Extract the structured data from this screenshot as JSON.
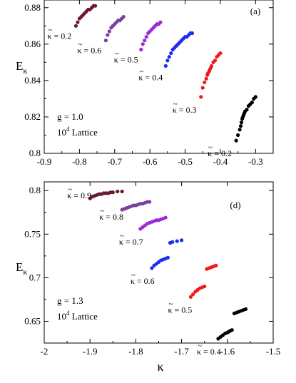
{
  "figure": {
    "xlabel_top_suffix": "",
    "kappa_symbol": "κ",
    "E_symbol": "E",
    "E_subscript": "κ",
    "tilde": "~"
  },
  "chart_data": [
    {
      "type": "scatter",
      "panel_label": "(a)",
      "xlabel": "",
      "ylabel": "Eκ",
      "xlim": [
        -0.9,
        -0.25
      ],
      "ylim": [
        0.8,
        0.885
      ],
      "xticks": [
        -0.9,
        -0.8,
        -0.7,
        -0.6,
        -0.5,
        -0.4,
        -0.3
      ],
      "xtick_labels": [
        "-0.9",
        "-0.8",
        "-0.7",
        "-0.6",
        "-0.5",
        "-0.4",
        "-0.3"
      ],
      "yticks": [
        0.8,
        0.82,
        0.84,
        0.86,
        0.88
      ],
      "ytick_labels": [
        "0.8",
        "0.82",
        "0.84",
        "0.86",
        "0.88"
      ],
      "annotation_lines": [
        "g = 1.0",
        "10",
        "4",
        " Lattice"
      ],
      "series": [
        {
          "label": "κ = 0.2",
          "color": "#6a1b2e",
          "label_pos": "left",
          "x": [
            -0.81,
            -0.805,
            -0.8,
            -0.795,
            -0.79,
            -0.785,
            -0.78,
            -0.775,
            -0.77,
            -0.765,
            -0.76,
            -0.755
          ],
          "y": [
            0.87,
            0.872,
            0.874,
            0.875,
            0.876,
            0.877,
            0.878,
            0.879,
            0.879,
            0.88,
            0.881,
            0.881
          ]
        },
        {
          "label": "κ = 0.6",
          "color": "#7b3fa0",
          "label_pos": "left",
          "x": [
            -0.725,
            -0.72,
            -0.715,
            -0.71,
            -0.705,
            -0.7,
            -0.695,
            -0.69,
            -0.685,
            -0.68,
            -0.675
          ],
          "y": [
            0.862,
            0.865,
            0.867,
            0.869,
            0.87,
            0.871,
            0.872,
            0.873,
            0.873,
            0.874,
            0.875
          ]
        },
        {
          "label": "κ = 0.5",
          "color": "#9a2bd6",
          "label_pos": "left",
          "x": [
            -0.625,
            -0.62,
            -0.615,
            -0.61,
            -0.605,
            -0.6,
            -0.595,
            -0.59,
            -0.585,
            -0.58,
            -0.575,
            -0.57
          ],
          "y": [
            0.857,
            0.86,
            0.862,
            0.864,
            0.866,
            0.867,
            0.868,
            0.869,
            0.87,
            0.871,
            0.871,
            0.872
          ]
        },
        {
          "label": "κ = 0.4",
          "color": "#1c2cf0",
          "label_pos": "left",
          "x": [
            -0.555,
            -0.55,
            -0.545,
            -0.54,
            -0.535,
            -0.53,
            -0.525,
            -0.52,
            -0.515,
            -0.51,
            -0.505,
            -0.5,
            -0.495,
            -0.49,
            -0.485,
            -0.48
          ],
          "y": [
            0.848,
            0.851,
            0.853,
            0.855,
            0.857,
            0.858,
            0.859,
            0.86,
            0.861,
            0.862,
            0.863,
            0.864,
            0.864,
            0.865,
            0.866,
            0.866
          ]
        },
        {
          "label": "κ = 0.3",
          "color": "#f01a1a",
          "label_pos": "left",
          "x": [
            -0.455,
            -0.45,
            -0.445,
            -0.44,
            -0.437,
            -0.435,
            -0.432,
            -0.43,
            -0.427,
            -0.425,
            -0.42,
            -0.415,
            -0.41,
            -0.405,
            -0.4
          ],
          "y": [
            0.831,
            0.836,
            0.839,
            0.841,
            0.843,
            0.844,
            0.845,
            0.846,
            0.847,
            0.848,
            0.85,
            0.851,
            0.853,
            0.854,
            0.855
          ]
        },
        {
          "label": "κ = 0.2",
          "color": "#000000",
          "label_pos": "left",
          "x": [
            -0.355,
            -0.35,
            -0.345,
            -0.342,
            -0.34,
            -0.338,
            -0.336,
            -0.334,
            -0.332,
            -0.33,
            -0.325,
            -0.32,
            -0.315,
            -0.31,
            -0.305,
            -0.3
          ],
          "y": [
            0.807,
            0.81,
            0.813,
            0.815,
            0.817,
            0.819,
            0.82,
            0.821,
            0.822,
            0.823,
            0.824,
            0.826,
            0.827,
            0.828,
            0.83,
            0.831
          ]
        }
      ]
    },
    {
      "type": "scatter",
      "panel_label": "(d)",
      "xlabel": "κ",
      "ylabel": "Eκ",
      "xlim": [
        -2.0,
        -1.5
      ],
      "ylim": [
        0.625,
        0.81
      ],
      "xticks": [
        -2.0,
        -1.9,
        -1.8,
        -1.7,
        -1.6,
        -1.5
      ],
      "xtick_labels": [
        "-2",
        "-1.9",
        "-1.8",
        "-1.7",
        "-1.6",
        "-1.5"
      ],
      "yticks": [
        0.65,
        0.7,
        0.75,
        0.8
      ],
      "ytick_labels": [
        "0.65",
        "0.7",
        "0.75",
        "0.8"
      ],
      "annotation_lines": [
        "g = 1.3",
        "10",
        "4",
        " Lattice"
      ],
      "series": [
        {
          "label": "κ = 0.9",
          "color": "#6a1b2e",
          "label_pos": "left",
          "x": [
            -1.9,
            -1.895,
            -1.89,
            -1.885,
            -1.88,
            -1.875,
            -1.87,
            -1.865,
            -1.86,
            -1.855,
            -1.85,
            -1.84,
            -1.83
          ],
          "y": [
            0.791,
            0.793,
            0.794,
            0.795,
            0.796,
            0.796,
            0.797,
            0.797,
            0.797,
            0.798,
            0.798,
            0.799,
            0.799
          ]
        },
        {
          "label": "κ = 0.8",
          "color": "#7b3fa0",
          "label_pos": "left",
          "x": [
            -1.83,
            -1.825,
            -1.82,
            -1.815,
            -1.81,
            -1.805,
            -1.8,
            -1.795,
            -1.79,
            -1.785,
            -1.78,
            -1.775,
            -1.77
          ],
          "y": [
            0.778,
            0.779,
            0.78,
            0.781,
            0.782,
            0.783,
            0.783,
            0.784,
            0.785,
            0.785,
            0.786,
            0.787,
            0.787
          ]
        },
        {
          "label": "κ = 0.7",
          "color": "#9a2bd6",
          "label_pos": "left",
          "x": [
            -1.79,
            -1.785,
            -1.78,
            -1.775,
            -1.77,
            -1.765,
            -1.76,
            -1.755,
            -1.75,
            -1.745,
            -1.74,
            -1.735
          ],
          "y": [
            0.756,
            0.758,
            0.76,
            0.762,
            0.763,
            0.764,
            0.765,
            0.766,
            0.766,
            0.767,
            0.768,
            0.769
          ]
        },
        {
          "label": "κ = 0.6",
          "color": "#1c2cf0",
          "label_pos": "left",
          "x": [
            -1.765,
            -1.76,
            -1.755,
            -1.75,
            -1.745,
            -1.74,
            -1.735,
            -1.73,
            -1.725,
            -1.72,
            -1.71,
            -1.7
          ],
          "y": [
            0.711,
            0.714,
            0.716,
            0.718,
            0.72,
            0.721,
            0.722,
            0.723,
            0.74,
            0.741,
            0.742,
            0.743
          ]
        },
        {
          "label": "κ = 0.5",
          "color": "#f01a1a",
          "label_pos": "left",
          "x": [
            -1.68,
            -1.675,
            -1.67,
            -1.665,
            -1.66,
            -1.655,
            -1.65,
            -1.645,
            -1.64,
            -1.635,
            -1.63,
            -1.625
          ],
          "y": [
            0.678,
            0.681,
            0.684,
            0.686,
            0.688,
            0.689,
            0.69,
            0.71,
            0.711,
            0.712,
            0.713,
            0.714
          ]
        },
        {
          "label": "κ = 0.4",
          "color": "#000000",
          "label_pos": "left",
          "x": [
            -1.62,
            -1.615,
            -1.61,
            -1.605,
            -1.6,
            -1.597,
            -1.594,
            -1.59,
            -1.585,
            -1.58,
            -1.575,
            -1.57,
            -1.565,
            -1.56
          ],
          "y": [
            0.63,
            0.632,
            0.634,
            0.636,
            0.637,
            0.638,
            0.639,
            0.64,
            0.659,
            0.66,
            0.661,
            0.662,
            0.663,
            0.664
          ]
        }
      ]
    }
  ]
}
